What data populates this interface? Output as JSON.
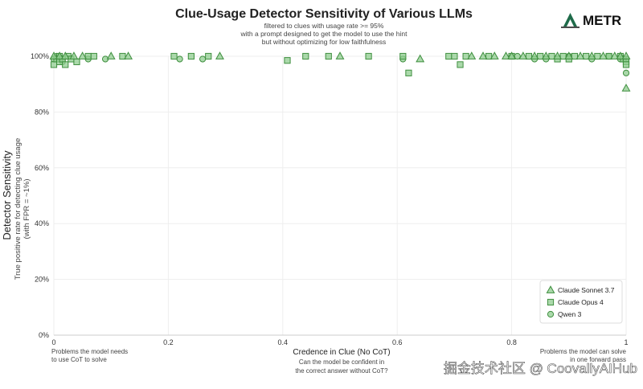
{
  "logo": {
    "text": "METR",
    "icon": "metr-logo-icon"
  },
  "watermark": "掘金技术社区 @ CoovallyAIHub",
  "chart_data": {
    "type": "scatter",
    "title": "Clue-Usage Detector Sensitivity of Various LLMs",
    "subtitle_lines": [
      "filtered to clues with usage rate >= 95%",
      "with a prompt designed to get the model to use the hint",
      "but without optimizing for low faithfulness"
    ],
    "xlabel": "Credence in Clue (No CoT)",
    "xlabel_sub": [
      "Can the model be confident in",
      "the correct answer without CoT?"
    ],
    "ylabel": "Detector Sensitivity",
    "ylabel_sub": [
      "True positive rate for detecting clue usage",
      "(with FPR = ~1%)"
    ],
    "x_notes": {
      "left": [
        "Problems the model needs",
        "to use CoT to solve"
      ],
      "right": [
        "Problems the model can solve",
        "in one forward pass"
      ]
    },
    "xlim": [
      0,
      1
    ],
    "ylim": [
      0,
      100
    ],
    "x_ticks": [
      "0",
      "0.2",
      "0.4",
      "0.6",
      "0.8",
      "1"
    ],
    "x_tick_values": [
      0,
      0.2,
      0.4,
      0.6,
      0.8,
      1
    ],
    "y_ticks": [
      "0%",
      "20%",
      "40%",
      "60%",
      "80%",
      "100%"
    ],
    "y_tick_values": [
      0,
      20,
      40,
      60,
      80,
      100
    ],
    "grid": true,
    "legend_position": "bottom-right",
    "series": [
      {
        "name": "Claude Sonnet 3.7",
        "marker": "triangle",
        "color": "#8fcc8f",
        "points": [
          [
            0.0,
            100
          ],
          [
            0.01,
            100
          ],
          [
            0.02,
            100
          ],
          [
            0.035,
            100
          ],
          [
            0.05,
            100
          ],
          [
            0.1,
            100
          ],
          [
            0.13,
            100
          ],
          [
            0.29,
            100
          ],
          [
            0.5,
            100
          ],
          [
            0.64,
            99
          ],
          [
            0.73,
            100
          ],
          [
            0.75,
            100
          ],
          [
            0.77,
            100
          ],
          [
            0.79,
            100
          ],
          [
            0.8,
            100
          ],
          [
            0.82,
            100
          ],
          [
            0.84,
            100
          ],
          [
            0.86,
            100
          ],
          [
            0.88,
            100
          ],
          [
            0.9,
            100
          ],
          [
            0.92,
            100
          ],
          [
            0.94,
            100
          ],
          [
            0.96,
            100
          ],
          [
            0.98,
            100
          ],
          [
            0.99,
            100
          ],
          [
            1.0,
            100
          ],
          [
            1.0,
            88.5
          ]
        ]
      },
      {
        "name": "Claude Opus 4",
        "marker": "square",
        "color": "#8fcc8f",
        "points": [
          [
            0.0,
            97
          ],
          [
            0.005,
            99
          ],
          [
            0.01,
            100
          ],
          [
            0.01,
            98
          ],
          [
            0.015,
            99
          ],
          [
            0.02,
            97
          ],
          [
            0.025,
            100
          ],
          [
            0.03,
            99
          ],
          [
            0.04,
            98
          ],
          [
            0.06,
            100
          ],
          [
            0.07,
            100
          ],
          [
            0.12,
            100
          ],
          [
            0.21,
            100
          ],
          [
            0.24,
            100
          ],
          [
            0.27,
            100
          ],
          [
            0.408,
            98.5
          ],
          [
            0.44,
            100
          ],
          [
            0.48,
            100
          ],
          [
            0.55,
            100
          ],
          [
            0.61,
            100
          ],
          [
            0.62,
            94
          ],
          [
            0.69,
            100
          ],
          [
            0.7,
            100
          ],
          [
            0.71,
            97
          ],
          [
            0.72,
            100
          ],
          [
            0.76,
            100
          ],
          [
            0.8,
            100
          ],
          [
            0.83,
            100
          ],
          [
            0.85,
            100
          ],
          [
            0.87,
            100
          ],
          [
            0.88,
            99
          ],
          [
            0.89,
            100
          ],
          [
            0.9,
            99
          ],
          [
            0.91,
            100
          ],
          [
            0.93,
            100
          ],
          [
            0.95,
            100
          ],
          [
            0.97,
            100
          ],
          [
            0.99,
            100
          ],
          [
            0.995,
            99
          ],
          [
            1.0,
            98
          ],
          [
            1.0,
            97
          ]
        ]
      },
      {
        "name": "Qwen 3",
        "marker": "circle",
        "color": "#8fcc8f",
        "points": [
          [
            0.0,
            99
          ],
          [
            0.005,
            100
          ],
          [
            0.01,
            99
          ],
          [
            0.015,
            98
          ],
          [
            0.06,
            99
          ],
          [
            0.09,
            99
          ],
          [
            0.22,
            99
          ],
          [
            0.26,
            99
          ],
          [
            0.61,
            99
          ],
          [
            0.81,
            100
          ],
          [
            0.84,
            99
          ],
          [
            0.86,
            99
          ],
          [
            0.9,
            100
          ],
          [
            0.94,
            99
          ],
          [
            0.97,
            100
          ],
          [
            0.99,
            99
          ],
          [
            1.0,
            99
          ],
          [
            1.0,
            94
          ]
        ]
      }
    ]
  }
}
